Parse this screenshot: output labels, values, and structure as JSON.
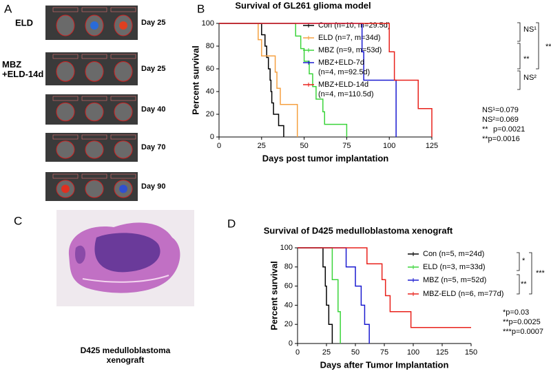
{
  "panels": {
    "a": "A",
    "b": "B",
    "c": "C",
    "d": "D"
  },
  "panel_a": {
    "groups": [
      "ELD",
      "MBZ\n+ELD-14d"
    ],
    "days": [
      "Day 25",
      "Day 25",
      "Day 40",
      "Day 70",
      "Day 90"
    ]
  },
  "panel_c": {
    "caption": "D425 medulloblastoma\nxenograft"
  },
  "chart_data": [
    {
      "type": "step",
      "title": "Survival of GL261 glioma model",
      "xlabel": "Days post tumor implantation",
      "ylabel": "Percent survival",
      "xlim": [
        0,
        125
      ],
      "xticks": [
        0,
        25,
        50,
        75,
        100,
        125
      ],
      "ylim": [
        0,
        100
      ],
      "yticks": [
        0,
        20,
        40,
        60,
        80,
        100
      ],
      "series": [
        {
          "name": "Con (n=10, m=29.5d)",
          "color": "#000000",
          "x": [
            0,
            25,
            27,
            28,
            29,
            30,
            30.5,
            31,
            32,
            35,
            38
          ],
          "values": [
            100,
            90,
            80,
            70,
            60,
            50,
            40,
            30,
            20,
            10,
            0
          ]
        },
        {
          "name": "ELD (n=7, m=34d)",
          "color": "#f5a040",
          "x": [
            0,
            23,
            25,
            33,
            34,
            36,
            46
          ],
          "values": [
            100,
            85.7,
            71.4,
            57.1,
            42.9,
            28.6,
            0
          ]
        },
        {
          "name": "MBZ (n=9, m=53d)",
          "color": "#3ad43a",
          "x": [
            0,
            45,
            48,
            50,
            53,
            55,
            57,
            61,
            62,
            75
          ],
          "values": [
            100,
            88.9,
            77.8,
            66.7,
            55.6,
            44.4,
            33.3,
            22.2,
            11.1,
            0
          ]
        },
        {
          "name": "MBZ+ELD-7d\n(n=4, m=92.5d)",
          "color": "#1a1ad0",
          "x": [
            0,
            84,
            85,
            104
          ],
          "values": [
            100,
            75,
            50,
            0
          ]
        },
        {
          "name": "MBZ+ELD-14d\n(n=4, m=110.5d)",
          "color": "#e8201a",
          "x": [
            0,
            100,
            103,
            117,
            125
          ],
          "values": [
            100,
            75,
            50,
            25,
            0
          ]
        }
      ],
      "bracket_labels": [
        "NS¹",
        "**",
        "NS²",
        "**"
      ],
      "annotations": [
        "NS¹=0.079",
        "NS²=0.069",
        "**",
        "p=0.0021",
        "**p=0.0016"
      ]
    },
    {
      "type": "step",
      "title": "Survival of D425 medulloblastoma xenograft",
      "xlabel": "Days after Tumor Implantation",
      "ylabel": "Percent survival",
      "xlim": [
        0,
        150
      ],
      "xticks": [
        0,
        25,
        50,
        75,
        100,
        125,
        150
      ],
      "ylim": [
        0,
        100
      ],
      "yticks": [
        0,
        20,
        40,
        60,
        80,
        100
      ],
      "series": [
        {
          "name": "Con (n=5, m=24d)",
          "color": "#000000",
          "x": [
            0,
            22,
            24,
            25,
            27,
            30
          ],
          "values": [
            100,
            80,
            60,
            40,
            20,
            0
          ]
        },
        {
          "name": "ELD (n=3, m=33d)",
          "color": "#3ad43a",
          "x": [
            0,
            30,
            35,
            37
          ],
          "values": [
            100,
            66.7,
            33.3,
            0
          ]
        },
        {
          "name": "MBZ (n=5, m=52d)",
          "color": "#1a1ad0",
          "x": [
            0,
            42,
            50,
            55,
            58,
            62
          ],
          "values": [
            100,
            80,
            60,
            40,
            20,
            0
          ]
        },
        {
          "name": "MBZ-ELD (n=6, m=77d)",
          "color": "#e8201a",
          "x": [
            0,
            60,
            73,
            76,
            80,
            98,
            150
          ],
          "values": [
            100,
            83.3,
            66.7,
            50,
            33.3,
            16.7,
            16.7
          ]
        }
      ],
      "bracket_labels": [
        "*",
        "**",
        "***"
      ],
      "annotations": [
        "*p=0.03",
        "**p=0.0025",
        "***p=0.0007"
      ]
    }
  ]
}
